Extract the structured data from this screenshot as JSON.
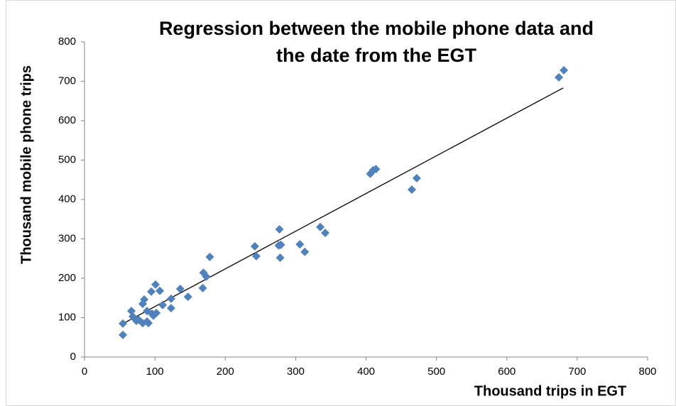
{
  "chart_data": {
    "type": "scatter",
    "title": [
      "Regression between the mobile phone data and",
      "the date from the EGT"
    ],
    "x_label": "Thousand trips in EGT",
    "y_label": "Thousand mobile phone trips",
    "color": "#4f81bd",
    "x": [
      54.5,
      54.5,
      66.6,
      68.6,
      73.7,
      76.7,
      82.7,
      84.8,
      82.7,
      88.8,
      88.8,
      90.8,
      94.9,
      95.9,
      100.9,
      97.9,
      102,
      107,
      111,
      123,
      123,
      136,
      147,
      168,
      169,
      173,
      178,
      242,
      244,
      277,
      276,
      279,
      278,
      306,
      313,
      335,
      342,
      406,
      410,
      414,
      465,
      472,
      674,
      681
    ],
    "y": [
      56,
      85,
      117,
      103,
      92,
      95,
      135,
      146,
      86,
      90,
      117,
      86,
      166,
      110,
      184,
      105,
      112,
      168,
      132,
      148,
      124,
      173,
      153,
      175,
      214,
      204,
      254,
      281,
      256,
      324,
      283,
      285,
      252,
      286,
      267,
      330,
      315,
      465,
      474,
      477,
      425,
      454,
      710,
      728
    ],
    "trendline": {
      "x": [
        55,
        680
      ],
      "y": [
        85,
        683
      ],
      "color": "#000000"
    },
    "xlim": [
      0,
      800
    ],
    "xticks": [
      0,
      100,
      200,
      300,
      400,
      500,
      600,
      700,
      800
    ],
    "ylim": [
      0,
      800
    ],
    "yticks": [
      0,
      100,
      200,
      300,
      400,
      500,
      600,
      700,
      800
    ],
    "grid": false
  }
}
